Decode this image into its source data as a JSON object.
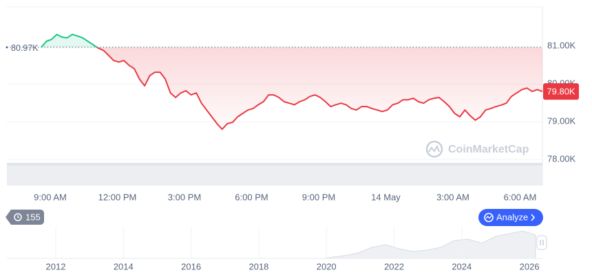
{
  "chart_data": {
    "type": "line",
    "series": [
      {
        "name": "Price",
        "color": "#ea3943",
        "color_above": "#16c784",
        "values": [
          80970,
          81130,
          81180,
          81310,
          81240,
          81220,
          81310,
          81270,
          81220,
          81130,
          81040,
          80950,
          80890,
          80760,
          80620,
          80580,
          80620,
          80490,
          80400,
          80130,
          79950,
          80220,
          80310,
          80310,
          80130,
          79760,
          79640,
          79760,
          79820,
          79710,
          79760,
          79490,
          79310,
          79130,
          78950,
          78800,
          78950,
          78980,
          79130,
          79220,
          79310,
          79350,
          79450,
          79530,
          79710,
          79710,
          79640,
          79530,
          79490,
          79450,
          79530,
          79580,
          79670,
          79710,
          79640,
          79530,
          79400,
          79450,
          79490,
          79450,
          79350,
          79310,
          79400,
          79400,
          79350,
          79310,
          79270,
          79310,
          79450,
          79490,
          79580,
          79580,
          79620,
          79530,
          79490,
          79580,
          79620,
          79640,
          79530,
          79400,
          79220,
          79130,
          79310,
          79160,
          79040,
          79130,
          79310,
          79350,
          79400,
          79440,
          79490,
          79670,
          79760,
          79850,
          79890,
          79800,
          79850,
          79800
        ]
      }
    ],
    "xticks": [
      "9:00 AM",
      "12:00 PM",
      "3:00 PM",
      "6:00 PM",
      "9:00 PM",
      "14 May",
      "3:00 AM",
      "6:00 AM"
    ],
    "ylim": [
      77310,
      82040
    ],
    "yticks": [
      {
        "value": 78000,
        "label": "78.00K"
      },
      {
        "value": 79000,
        "label": "79.00K"
      },
      {
        "value": 80000,
        "label": "80.00K"
      },
      {
        "value": 81000,
        "label": "81.00K"
      }
    ],
    "grid": true,
    "reference": {
      "value": 80970,
      "label": "80.97K"
    },
    "last_price": {
      "value": 79800,
      "label": "79.80K"
    },
    "watermark": "CoinMarketCap"
  },
  "navigator": {
    "years": [
      "2012",
      "2014",
      "2016",
      "2018",
      "2020",
      "2022",
      "2024",
      "2026"
    ]
  },
  "controls": {
    "history_badge": "155",
    "analyze_button": "Analyze"
  }
}
